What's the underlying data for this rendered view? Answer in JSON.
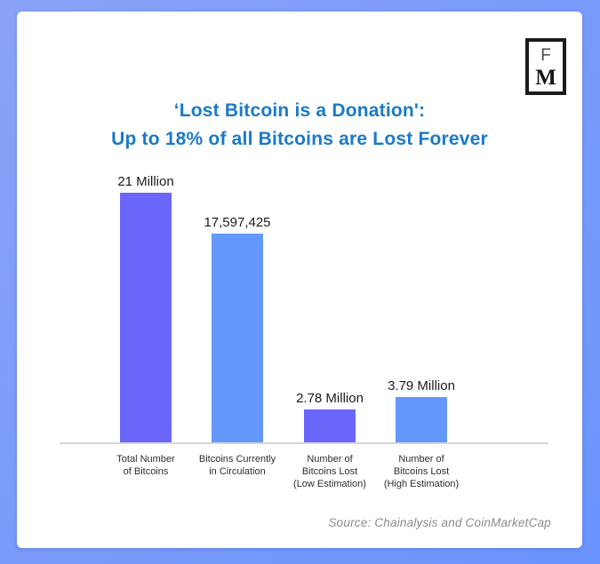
{
  "frame": {
    "border_color_start": "#8aa3f8",
    "border_color_end": "#6b94fe",
    "card_background": "#ffffff"
  },
  "logo": {
    "letter_top": "F",
    "letter_bottom": "M"
  },
  "title": {
    "line1": "‘Lost Bitcoin is a Donation':",
    "line2": "Up to 18% of all Bitcoins are Lost Forever",
    "color": "#1a7ac8"
  },
  "source": {
    "text": "Source: Chainalysis and CoinMarketCap"
  },
  "chart_data": {
    "type": "bar",
    "title": "‘Lost Bitcoin is a Donation': Up to 18% of all Bitcoins are Lost Forever",
    "categories": [
      "Total Number\nof Bitcoins",
      "Bitcoins Currently\nin Circulation",
      "Number of\nBitcoins Lost\n(Low Estimation)",
      "Number of\nBitcoins Lost\n(High Estimation)"
    ],
    "values": [
      21000000,
      17597425,
      2780000,
      3790000
    ],
    "value_labels": [
      "21 Million",
      "17,597,425",
      "2.78 Million",
      "3.79 Million"
    ],
    "bar_colors": [
      "#6b66fa",
      "#6498fa",
      "#6b66fa",
      "#6498fa"
    ],
    "ylim": [
      0,
      21000000
    ],
    "xlabel": "",
    "ylabel": "",
    "grid": false,
    "legend": "none",
    "axis_color": "#d6d6d6",
    "source": "Source: Chainalysis and CoinMarketCap"
  }
}
